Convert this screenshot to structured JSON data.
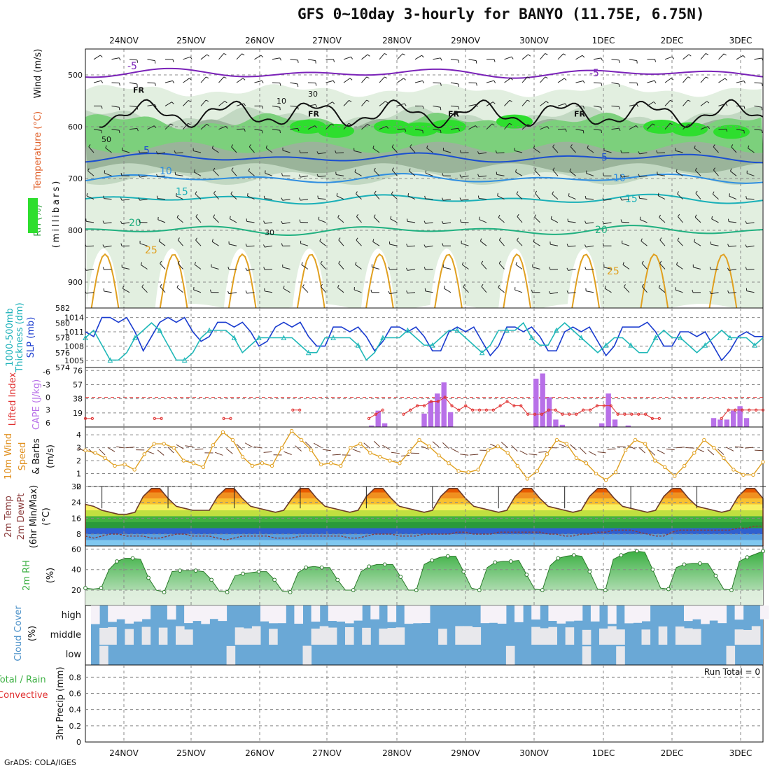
{
  "header": {
    "title": "GFS 0~10day 3-hourly for BANYO (11.75E, 6.75N)",
    "footer": "GrADS: COLA/IGES"
  },
  "chart_data": [
    {
      "id": "pressure",
      "type": "heatmap",
      "ylabels": [
        "Wind (m/s)",
        "Temperature (°C)",
        "RH (%)",
        "(millibars)"
      ],
      "yticks": [
        500,
        600,
        700,
        800,
        900
      ],
      "ylim": [
        950,
        450
      ],
      "x": [
        "24NOV",
        "25NOV",
        "26NOV",
        "27NOV",
        "28NOV",
        "29NOV",
        "30NOV",
        "1DEC",
        "2DEC",
        "3DEC"
      ],
      "temperature_isotherms": [
        {
          "label": "-5",
          "color": "#7a22b8",
          "level": 497
        },
        {
          "label": "5",
          "color": "#1a4fd0",
          "level": 660
        },
        {
          "label": "10",
          "color": "#2f8ee0",
          "level": 700
        },
        {
          "label": "15",
          "color": "#1ab0b8",
          "level": 740
        },
        {
          "label": "20",
          "color": "#20b080",
          "level": 800
        },
        {
          "label": "25",
          "color": "#e0a020",
          "level": 880
        }
      ],
      "freezing_label": "FR",
      "rh_labels": [
        "10",
        "30",
        "50",
        "30"
      ],
      "colors": {
        "rh_light": "#e2efe0",
        "rh_mid": "#c2d8c2",
        "rh_dark": "#9ab49a",
        "rh_green": "#7cd07c",
        "rh_bright": "#2ede2e"
      }
    },
    {
      "id": "slp_thickness",
      "type": "line",
      "ylabels": [
        "1000-500mb",
        "Thickness (dm)",
        "SLP (mb)"
      ],
      "yticks_left": [
        574,
        576,
        578,
        580,
        582
      ],
      "yticks_right": [
        1005,
        1008,
        1011,
        1014
      ],
      "series": [
        {
          "name": "SLP (mb)",
          "color": "#1a3ccf",
          "values": [
            1011,
            1010,
            1014,
            1014,
            1013,
            1014,
            1011,
            1007,
            1010,
            1013,
            1014,
            1013,
            1014,
            1011,
            1009,
            1010,
            1013,
            1013,
            1012,
            1013,
            1011,
            1008,
            1009,
            1012,
            1013,
            1012,
            1013,
            1010,
            1008,
            1008,
            1012,
            1012,
            1011,
            1012,
            1010,
            1007,
            1009,
            1012,
            1012,
            1011,
            1012,
            1010,
            1007,
            1007,
            1011,
            1012,
            1011,
            1012,
            1009,
            1006,
            1008,
            1012,
            1012,
            1011,
            1012,
            1010,
            1007,
            1007,
            1011,
            1012,
            1011,
            1012,
            1009,
            1006,
            1008,
            1012,
            1012,
            1012,
            1013,
            1011,
            1008,
            1008,
            1011,
            1011,
            1010,
            1011,
            1008,
            1005,
            1007,
            1010,
            1011,
            1010,
            1010
          ]
        },
        {
          "name": "1000-500mb Thickness (dm)",
          "color": "#20b8b8",
          "values": [
            578,
            579,
            577,
            575,
            575,
            576,
            578,
            579,
            580,
            579,
            577,
            575,
            575,
            576,
            578,
            579,
            579,
            579,
            578,
            576,
            577,
            578,
            578,
            578,
            578,
            578,
            577,
            576,
            576,
            578,
            578,
            578,
            578,
            577,
            575,
            576,
            578,
            578,
            578,
            579,
            578,
            577,
            577,
            578,
            579,
            579,
            578,
            577,
            576,
            577,
            579,
            579,
            579,
            580,
            578,
            577,
            577,
            579,
            580,
            579,
            578,
            577,
            576,
            577,
            578,
            578,
            577,
            576,
            576,
            578,
            579,
            578,
            578,
            577,
            576,
            577,
            578,
            579,
            578,
            578,
            578,
            577,
            578
          ]
        }
      ]
    },
    {
      "id": "cape_li",
      "type": "bar",
      "ylabels": [
        "Lifted Index",
        "CAPE (J/kg)"
      ],
      "yticks_left": [
        -6,
        -3,
        0,
        3,
        6
      ],
      "yticks_right": [
        19,
        38,
        57,
        76
      ],
      "series": [
        {
          "name": "CAPE (J/kg)",
          "color": "#b870e8",
          "values": [
            0,
            0,
            0,
            0,
            0,
            0,
            0,
            0,
            0,
            0,
            0,
            0,
            0,
            0,
            0,
            0,
            0,
            0,
            0,
            0,
            0,
            0,
            0,
            0,
            0,
            0,
            0,
            0,
            0,
            0,
            0,
            0,
            0,
            0,
            0,
            0,
            0,
            0,
            0,
            0,
            0,
            0,
            0,
            2,
            22,
            5,
            0,
            0,
            0,
            0,
            0,
            18,
            35,
            45,
            60,
            20,
            0,
            0,
            0,
            0,
            0,
            0,
            0,
            0,
            0,
            0,
            0,
            0,
            65,
            72,
            40,
            10,
            3,
            0,
            0,
            0,
            0,
            0,
            5,
            45,
            10,
            0,
            2,
            0,
            0,
            0,
            0,
            0,
            0,
            0,
            0,
            0,
            0,
            0,
            0,
            12,
            10,
            10,
            22,
            28,
            12,
            0,
            0
          ]
        },
        {
          "name": "Lifted Index",
          "color": "#e03030",
          "values": [
            5,
            5,
            null,
            null,
            null,
            null,
            null,
            null,
            null,
            null,
            5,
            5,
            null,
            null,
            null,
            null,
            null,
            null,
            null,
            null,
            5,
            5,
            null,
            null,
            null,
            null,
            null,
            null,
            null,
            null,
            3,
            3,
            null,
            null,
            null,
            null,
            null,
            null,
            null,
            null,
            null,
            5,
            4,
            3,
            null,
            null,
            4,
            3,
            2,
            2,
            1,
            1,
            0,
            2,
            3,
            2,
            3,
            3,
            3,
            3,
            2,
            1,
            2,
            2,
            4,
            4,
            4,
            3,
            3,
            4,
            4,
            4,
            3,
            3,
            2,
            2,
            2,
            4,
            4,
            4,
            4,
            4,
            5,
            5,
            null,
            null,
            null,
            null,
            null,
            null,
            null,
            null,
            5,
            3,
            3,
            3,
            3,
            3,
            3
          ]
        }
      ]
    },
    {
      "id": "wind10m",
      "type": "line",
      "ylabels": [
        "10m Wind",
        "Speed",
        "& Barbs",
        "(m/s)"
      ],
      "yticks": [
        0,
        1,
        2,
        3,
        4
      ],
      "ylim": [
        0,
        4.6
      ],
      "series": [
        {
          "name": "Speed",
          "color": "#e0a020",
          "values": [
            2.8,
            2.6,
            2.2,
            1.6,
            1.7,
            1.3,
            2.5,
            3.3,
            3.3,
            3.0,
            2.0,
            1.8,
            1.5,
            3.2,
            4.2,
            3.6,
            2.3,
            1.6,
            1.8,
            1.6,
            3.0,
            4.3,
            3.6,
            2.8,
            1.7,
            1.8,
            1.6,
            3.0,
            3.3,
            2.6,
            2.3,
            2.0,
            1.8,
            2.7,
            3.6,
            3.1,
            2.4,
            1.8,
            1.2,
            1.1,
            1.3,
            2.8,
            3.1,
            2.6,
            1.6,
            0.6,
            1.2,
            2.5,
            3.6,
            3.3,
            2.2,
            1.8,
            1.0,
            0.5,
            1.1,
            2.8,
            3.6,
            3.3,
            2.0,
            1.5,
            0.8,
            1.6,
            2.6,
            3.6,
            3.0,
            2.2,
            1.3,
            0.9,
            0.9,
            1.9
          ]
        }
      ]
    },
    {
      "id": "temp2m",
      "type": "area",
      "ylabels": [
        "2m Temp",
        "2m DewPt",
        "(6hr Min/Max)",
        "(°C)"
      ],
      "yticks": [
        8,
        16,
        24,
        32
      ],
      "ylim": [
        2,
        32
      ],
      "series": [
        {
          "name": "2m Temp",
          "color": "#6b3a2a",
          "values": [
            23,
            22,
            20,
            19,
            18,
            18,
            19,
            27,
            31,
            31,
            26,
            22,
            21,
            20,
            20,
            20,
            27,
            31,
            31,
            26,
            22,
            21,
            20,
            19,
            20,
            26,
            31,
            31,
            26,
            22,
            21,
            20,
            19,
            20,
            27,
            31,
            31,
            26,
            22,
            21,
            20,
            19,
            20,
            27,
            31,
            31,
            26,
            22,
            21,
            20,
            19,
            20,
            27,
            31,
            31,
            26,
            22,
            21,
            20,
            19,
            20,
            27,
            31,
            31,
            26,
            22,
            21,
            20,
            19,
            20,
            27,
            31,
            31,
            26,
            22,
            21,
            20,
            19,
            20,
            27,
            31,
            31,
            26
          ]
        },
        {
          "name": "2m DewPt",
          "color": "#8a3b3b",
          "values": [
            7,
            6,
            7,
            8,
            8,
            7,
            7,
            7,
            6,
            6,
            7,
            8,
            8,
            7,
            7,
            7,
            6,
            5,
            6,
            7,
            7,
            7,
            7,
            6,
            6,
            6,
            7,
            7,
            7,
            7,
            7,
            7,
            6,
            6,
            7,
            8,
            8,
            8,
            7,
            7,
            7,
            8,
            8,
            8,
            8,
            9,
            9,
            8,
            8,
            8,
            9,
            9,
            9,
            9,
            9,
            9,
            8,
            8,
            7,
            7,
            8,
            8,
            9,
            9,
            10,
            10,
            10,
            9,
            8,
            7,
            7,
            9,
            10,
            10,
            10,
            10,
            10,
            10,
            10,
            11,
            11,
            12,
            12
          ]
        }
      ],
      "colors": {
        "orange_dark": "#e85a00",
        "orange": "#f09020",
        "gold": "#f8c030",
        "yellow": "#f8f060",
        "lime": "#c0e040",
        "green": "#40b040",
        "green_dark": "#2a9a3a",
        "blue": "#3060d0",
        "blue_light": "#5aa0e0",
        "cyan": "#80c8f0"
      }
    },
    {
      "id": "rh2m",
      "type": "area",
      "ylabels": [
        "2m RH",
        "(%)"
      ],
      "yticks": [
        20,
        40,
        60
      ],
      "ylim": [
        5,
        63
      ],
      "series": [
        {
          "name": "2m RH",
          "color": "#3cb043",
          "values": [
            22,
            21,
            22,
            40,
            48,
            51,
            51,
            50,
            32,
            20,
            18,
            38,
            39,
            39,
            39,
            38,
            30,
            19,
            18,
            34,
            36,
            37,
            38,
            38,
            30,
            19,
            18,
            37,
            42,
            43,
            42,
            42,
            30,
            20,
            20,
            38,
            43,
            45,
            45,
            45,
            33,
            20,
            20,
            45,
            49,
            52,
            53,
            53,
            38,
            22,
            20,
            42,
            47,
            48,
            48,
            49,
            35,
            21,
            20,
            44,
            51,
            53,
            54,
            53,
            38,
            21,
            20,
            50,
            54,
            57,
            58,
            57,
            40,
            22,
            21,
            42,
            45,
            46,
            46,
            46,
            34,
            21,
            20,
            48,
            52,
            55,
            58
          ]
        }
      ]
    },
    {
      "id": "cloud",
      "type": "heatmap",
      "ylabels": [
        "Cloud Cover",
        "(%)"
      ],
      "levels": [
        "high",
        "middle",
        "low"
      ],
      "colors": {
        "cloud": "#6aa8d6",
        "clear": "#ffffff",
        "partial": "#e8e8ec"
      }
    },
    {
      "id": "precip",
      "type": "bar",
      "ylabels": [
        "Total / Rain",
        "Convective",
        "3hr Precip (mm)"
      ],
      "yticks": [
        0,
        0.2,
        0.4,
        0.6,
        0.8
      ],
      "ylim": [
        0,
        0.95
      ],
      "annotation": "Run Total = 0",
      "series": [
        {
          "name": "Total / Rain",
          "color": "#3cb043",
          "values": []
        },
        {
          "name": "Convective",
          "color": "#e03030",
          "values": []
        }
      ]
    }
  ]
}
